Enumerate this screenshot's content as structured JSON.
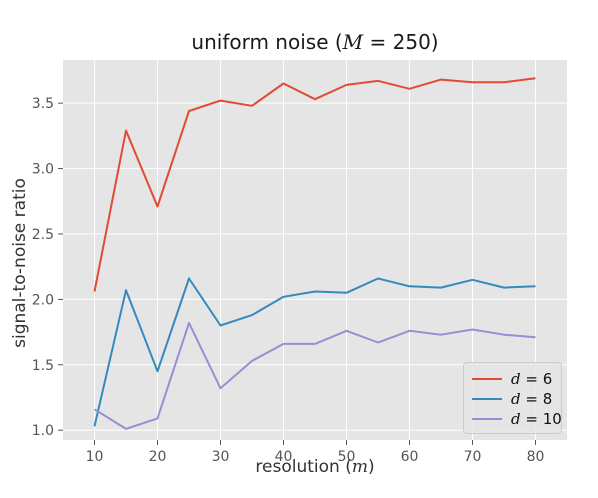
{
  "chart_data": {
    "type": "line",
    "title": {
      "prefix": "uniform noise (",
      "var": "M",
      "suffix": " = 250)"
    },
    "xlabel": {
      "prefix": "resolution (",
      "var": "m",
      "suffix": ")"
    },
    "ylabel": "signal-to-noise ratio",
    "x": [
      10,
      15,
      20,
      25,
      30,
      35,
      40,
      45,
      50,
      55,
      60,
      65,
      70,
      75,
      80
    ],
    "xlim": [
      5,
      85
    ],
    "ylim": [
      0.925,
      3.83
    ],
    "xticks": [
      10,
      20,
      30,
      40,
      50,
      60,
      70,
      80
    ],
    "yticks": [
      1.0,
      1.5,
      2.0,
      2.5,
      3.0,
      3.5
    ],
    "xtick_labels": [
      "10",
      "20",
      "30",
      "40",
      "50",
      "60",
      "70",
      "80"
    ],
    "ytick_labels": [
      "1.0",
      "1.5",
      "2.0",
      "2.5",
      "3.0",
      "3.5"
    ],
    "grid": true,
    "legend_position": "lower-right",
    "series": [
      {
        "var": "d",
        "label": " = 6",
        "color": "#E24A33",
        "values": [
          2.06,
          3.29,
          2.71,
          3.44,
          3.52,
          3.48,
          3.65,
          3.53,
          3.64,
          3.67,
          3.61,
          3.68,
          3.66,
          3.66,
          3.69
        ]
      },
      {
        "var": "d",
        "label": " = 8",
        "color": "#348ABD",
        "values": [
          1.03,
          2.07,
          1.45,
          2.16,
          1.8,
          1.88,
          2.02,
          2.06,
          2.05,
          2.16,
          2.1,
          2.09,
          2.15,
          2.09,
          2.1
        ]
      },
      {
        "var": "d",
        "label": " = 10",
        "color": "#988ED5",
        "values": [
          1.16,
          1.01,
          1.09,
          1.82,
          1.32,
          1.53,
          1.66,
          1.66,
          1.76,
          1.67,
          1.76,
          1.73,
          1.77,
          1.73,
          1.71
        ]
      }
    ]
  }
}
